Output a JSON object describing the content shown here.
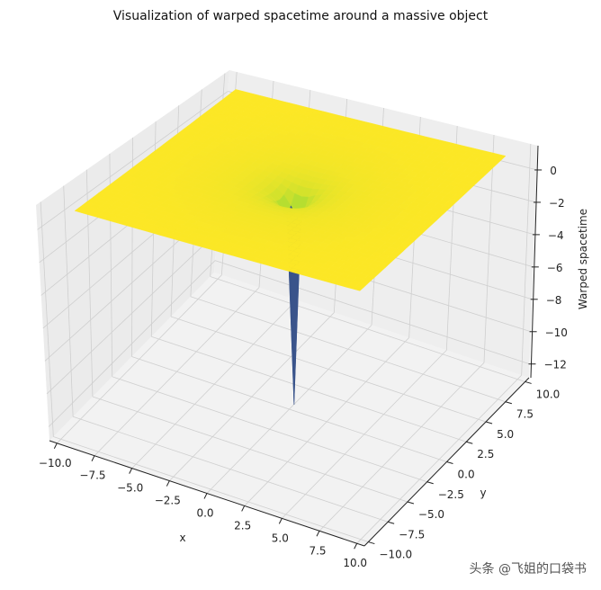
{
  "chart_data": {
    "type": "surface",
    "title": "Visualization of warped spacetime around a massive object",
    "xlabel": "x",
    "ylabel": "y",
    "zlabel": "Warped spacetime",
    "xlim": [
      -10,
      10
    ],
    "ylim": [
      -10,
      10
    ],
    "zlim": [
      -12.5,
      0
    ],
    "xticks": [
      -10,
      -7.5,
      -5,
      -2.5,
      0,
      2.5,
      5,
      7.5,
      10
    ],
    "xtick_labels": [
      "−10.0",
      "−7.5",
      "−5.0",
      "−2.5",
      "0.0",
      "2.5",
      "5.0",
      "7.5",
      "10.0"
    ],
    "yticks": [
      -10,
      -7.5,
      -5,
      -2.5,
      0,
      2.5,
      5,
      7.5,
      10
    ],
    "ytick_labels": [
      "−10.0",
      "−7.5",
      "−5.0",
      "−2.5",
      "0.0",
      "2.5",
      "5.0",
      "7.5",
      "10.0"
    ],
    "zticks": [
      0,
      -2,
      -4,
      -6,
      -8,
      -10,
      -12
    ],
    "ztick_labels": [
      "0",
      "−2",
      "−4",
      "−6",
      "−8",
      "−10",
      "−12"
    ],
    "grid": true,
    "colormap": "viridis",
    "radial_profile": [
      {
        "r": 0,
        "z": -12.5
      },
      {
        "r": 0.5,
        "z": -2
      },
      {
        "r": 0.75,
        "z": -1.33
      },
      {
        "r": 1,
        "z": -1
      },
      {
        "r": 1.5,
        "z": -0.67
      },
      {
        "r": 2,
        "z": -0.5
      },
      {
        "r": 3,
        "z": -0.33
      },
      {
        "r": 4,
        "z": -0.25
      },
      {
        "r": 6,
        "z": -0.17
      },
      {
        "r": 8,
        "z": -0.125
      },
      {
        "r": 10,
        "z": -0.1
      },
      {
        "r": 15,
        "z": -0.067
      }
    ]
  },
  "watermark": "头条 @飞姐的口袋书"
}
